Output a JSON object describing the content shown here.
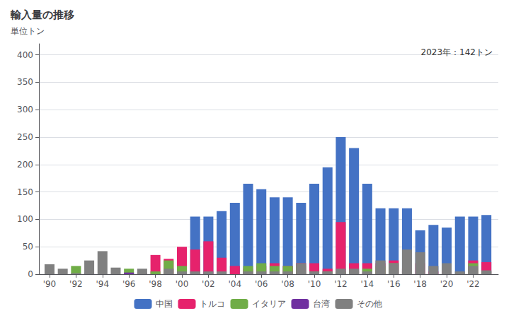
{
  "chart_data": {
    "type": "bar",
    "title": "輸入量の推移",
    "ylabel": "単位トン",
    "annotation": "2023年：142トン",
    "stacked": true,
    "grid": true,
    "legend": "bottom",
    "x": [
      1990,
      1991,
      1992,
      1993,
      1994,
      1995,
      1996,
      1997,
      1998,
      1999,
      2000,
      2001,
      2002,
      2003,
      2004,
      2005,
      2006,
      2007,
      2008,
      2009,
      2010,
      2011,
      2012,
      2013,
      2014,
      2015,
      2016,
      2017,
      2018,
      2019,
      2020,
      2021,
      2022,
      2023
    ],
    "xlim": [
      1989.2,
      2023.9
    ],
    "xticks": [
      {
        "value": 1990,
        "label": "'90"
      },
      {
        "value": 1992,
        "label": "'92"
      },
      {
        "value": 1994,
        "label": "'94"
      },
      {
        "value": 1996,
        "label": "'96"
      },
      {
        "value": 1998,
        "label": "'98"
      },
      {
        "value": 2000,
        "label": "'00"
      },
      {
        "value": 2002,
        "label": "'02"
      },
      {
        "value": 2004,
        "label": "'04"
      },
      {
        "value": 2006,
        "label": "'06"
      },
      {
        "value": 2008,
        "label": "'08"
      },
      {
        "value": 2010,
        "label": "'10"
      },
      {
        "value": 2012,
        "label": "'12"
      },
      {
        "value": 2014,
        "label": "'14"
      },
      {
        "value": 2016,
        "label": "'16"
      },
      {
        "value": 2018,
        "label": "'18"
      },
      {
        "value": 2020,
        "label": "'20"
      },
      {
        "value": 2022,
        "label": "'22"
      }
    ],
    "ylim": [
      0,
      420
    ],
    "yticks": [
      0,
      50,
      100,
      150,
      200,
      250,
      300,
      350,
      400
    ],
    "series": [
      {
        "name": "中国",
        "color": "#4472c4",
        "values": [
          0,
          0,
          0,
          0,
          0,
          0,
          0,
          0,
          0,
          0,
          20,
          105,
          105,
          115,
          130,
          165,
          155,
          140,
          140,
          130,
          165,
          195,
          250,
          230,
          165,
          120,
          120,
          120,
          80,
          90,
          85,
          105,
          105,
          108
        ]
      },
      {
        "name": "トルコ",
        "color": "#e6226c",
        "values": [
          0,
          0,
          0,
          0,
          0,
          0,
          0,
          0,
          35,
          28,
          50,
          45,
          60,
          30,
          15,
          10,
          15,
          20,
          15,
          20,
          20,
          10,
          95,
          20,
          20,
          20,
          25,
          10,
          20,
          5,
          5,
          0,
          25,
          22
        ]
      },
      {
        "name": "イタリア",
        "color": "#70ad47",
        "values": [
          0,
          0,
          15,
          0,
          0,
          0,
          10,
          0,
          5,
          25,
          15,
          0,
          0,
          0,
          0,
          15,
          20,
          15,
          15,
          15,
          5,
          5,
          5,
          5,
          10,
          15,
          20,
          5,
          0,
          0,
          0,
          0,
          20,
          5
        ]
      },
      {
        "name": "台湾",
        "color": "#7030a0",
        "values": [
          0,
          0,
          0,
          3,
          0,
          0,
          3,
          3,
          0,
          0,
          0,
          0,
          0,
          0,
          0,
          0,
          0,
          0,
          0,
          0,
          0,
          0,
          0,
          0,
          2,
          0,
          0,
          0,
          0,
          0,
          0,
          0,
          0,
          0
        ]
      },
      {
        "name": "その他",
        "color": "#808080",
        "values": [
          18,
          10,
          2,
          25,
          42,
          12,
          0,
          10,
          0,
          10,
          5,
          5,
          5,
          5,
          0,
          5,
          5,
          5,
          5,
          20,
          5,
          5,
          10,
          10,
          5,
          25,
          20,
          45,
          40,
          15,
          20,
          5,
          15,
          7
        ]
      }
    ]
  }
}
